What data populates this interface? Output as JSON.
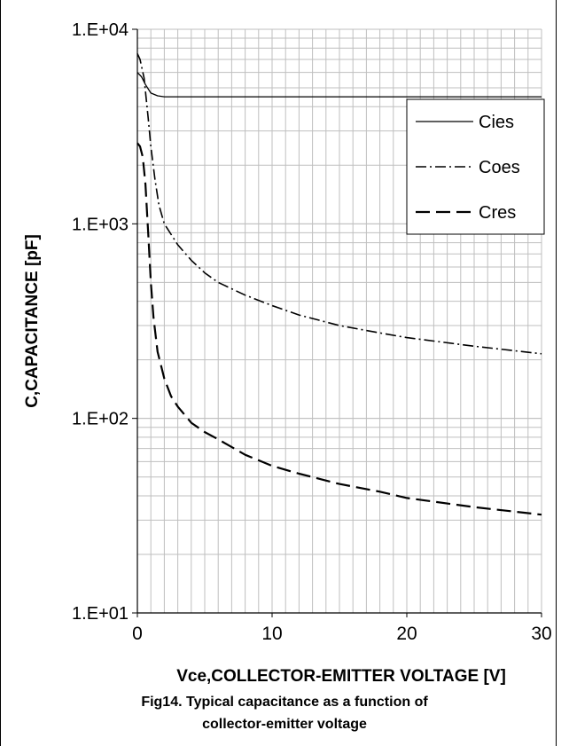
{
  "chart_data": {
    "type": "line",
    "title": "",
    "xlabel": "Vce,COLLECTOR-EMITTER VOLTAGE [V]",
    "ylabel": "C,CAPACITANCE [pF]",
    "xlim": [
      0,
      30
    ],
    "ylim": [
      10,
      10000
    ],
    "yscale": "log",
    "grid": true,
    "legend_position": "top-right",
    "x_ticks": [
      0,
      10,
      20,
      30
    ],
    "x_tick_labels": [
      "0",
      "10",
      "20",
      "30"
    ],
    "y_ticks": [
      10,
      100,
      1000,
      10000
    ],
    "y_tick_labels": [
      "1.E+01",
      "1.E+02",
      "1.E+03",
      "1.E+04"
    ],
    "series": [
      {
        "name": "Cies",
        "style": "solid",
        "x": [
          0,
          0.3,
          0.6,
          1.0,
          1.5,
          2,
          3,
          5,
          10,
          20,
          30
        ],
        "y": [
          6000,
          5700,
          5200,
          4700,
          4550,
          4500,
          4500,
          4500,
          4500,
          4500,
          4500
        ]
      },
      {
        "name": "Coes",
        "style": "dash-dot",
        "x": [
          0,
          0.2,
          0.5,
          0.8,
          1.0,
          1.3,
          1.6,
          2,
          3,
          4,
          5,
          6,
          8,
          10,
          12,
          15,
          18,
          20,
          25,
          30
        ],
        "y": [
          7500,
          7000,
          5600,
          3500,
          2500,
          1700,
          1250,
          1000,
          780,
          650,
          560,
          500,
          430,
          380,
          340,
          300,
          275,
          260,
          235,
          215
        ]
      },
      {
        "name": "Cres",
        "style": "dashed",
        "x": [
          0,
          0.2,
          0.4,
          0.6,
          0.8,
          1.0,
          1.2,
          1.5,
          2,
          2.5,
          3,
          4,
          5,
          6,
          8,
          10,
          12,
          15,
          18,
          20,
          25,
          30
        ],
        "y": [
          2600,
          2500,
          2200,
          1600,
          900,
          500,
          330,
          220,
          160,
          130,
          115,
          95,
          85,
          78,
          65,
          57,
          52,
          46,
          42,
          39,
          35,
          32
        ]
      }
    ]
  },
  "caption": {
    "line1": "Fig14.  Typical capacitance as a function of",
    "line2": "collector-emitter voltage"
  }
}
